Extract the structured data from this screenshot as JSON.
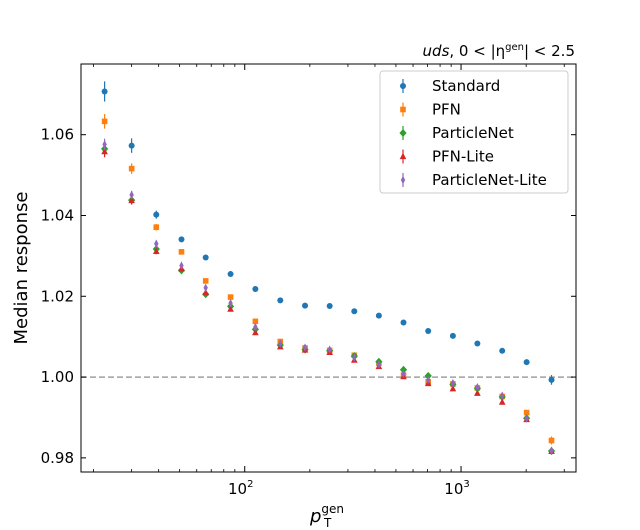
{
  "chart_data": {
    "type": "scatter",
    "title": "",
    "corner_label": {
      "prefix": "uds",
      "mid": ", 0 < |η",
      "sup": "gen",
      "suffix": "| < 2.5"
    },
    "xlabel": {
      "base": "p",
      "sub": "T",
      "sup": "gen"
    },
    "ylabel": "Median response",
    "xscale": "log",
    "xlim": [
      17.5,
      3400
    ],
    "ylim": [
      0.9765,
      1.0775
    ],
    "x_ticks": [
      {
        "value": 100,
        "base": "10",
        "exp": "2"
      },
      {
        "value": 1000,
        "base": "10",
        "exp": "3"
      }
    ],
    "y_ticks": [
      {
        "value": 0.98,
        "label": "0.98"
      },
      {
        "value": 1.0,
        "label": "1.00"
      },
      {
        "value": 1.02,
        "label": "1.02"
      },
      {
        "value": 1.04,
        "label": "1.04"
      },
      {
        "value": 1.06,
        "label": "1.06"
      }
    ],
    "reference_line": {
      "y": 1.0,
      "style": "dashed",
      "color": "#a0a0a0"
    },
    "grid": false,
    "legend": {
      "placement": "top-right"
    },
    "x": [
      22.5,
      30,
      39,
      51,
      66,
      86,
      112,
      146,
      190,
      247,
      321,
      417,
      542,
      705,
      917,
      1190,
      1550,
      2010,
      2620
    ],
    "series": [
      {
        "name": "Standard",
        "color": "#1f77b4",
        "marker": "circle",
        "values": [
          1.0707,
          1.0573,
          1.0402,
          1.0341,
          1.0296,
          1.0255,
          1.0218,
          1.019,
          1.0177,
          1.0176,
          1.0163,
          1.0152,
          1.0135,
          1.0114,
          1.0102,
          1.0083,
          1.0065,
          1.0037,
          0.9993
        ],
        "errors": [
          0.0025,
          0.0018,
          0.001,
          0.0007,
          0.0006,
          0.0004,
          0.0004,
          0.0003,
          0.0003,
          0.0003,
          0.0003,
          0.0003,
          0.0003,
          0.0003,
          0.0003,
          0.0003,
          0.0004,
          0.0005,
          0.0012
        ]
      },
      {
        "name": "PFN",
        "color": "#ff7f0e",
        "marker": "square",
        "values": [
          1.0633,
          1.0516,
          1.0371,
          1.031,
          1.0238,
          1.0198,
          1.0138,
          1.0088,
          1.0072,
          1.0066,
          1.0054,
          1.0034,
          1.0005,
          0.9988,
          0.9983,
          0.9973,
          0.9952,
          0.9912,
          0.9843
        ],
        "errors": [
          0.0018,
          0.0013,
          0.0008,
          0.0005,
          0.0004,
          0.0004,
          0.0003,
          0.0003,
          0.0003,
          0.0003,
          0.0003,
          0.0003,
          0.0003,
          0.0003,
          0.0003,
          0.0003,
          0.0004,
          0.0005,
          0.001
        ]
      },
      {
        "name": "ParticleNet",
        "color": "#2ca02c",
        "marker": "diamond",
        "values": [
          1.0565,
          1.0438,
          1.0317,
          1.0264,
          1.0205,
          1.0175,
          1.0118,
          1.0079,
          1.0068,
          1.0065,
          1.0052,
          1.0038,
          1.0018,
          1.0003,
          0.9982,
          0.9972,
          0.9951,
          0.9898,
          0.9817
        ],
        "errors": [
          0.0014,
          0.001,
          0.0007,
          0.0005,
          0.0004,
          0.0003,
          0.0003,
          0.0003,
          0.0003,
          0.0003,
          0.0003,
          0.0003,
          0.0003,
          0.0003,
          0.0003,
          0.0003,
          0.0003,
          0.0005,
          0.0008
        ]
      },
      {
        "name": "PFN-Lite",
        "color": "#d62728",
        "marker": "triangle",
        "values": [
          1.0558,
          1.0437,
          1.0311,
          1.0268,
          1.0209,
          1.0168,
          1.011,
          1.0075,
          1.0067,
          1.0061,
          1.0042,
          1.0026,
          1.0001,
          0.9984,
          0.9971,
          0.996,
          0.9938,
          0.9895,
          0.9816
        ],
        "errors": [
          0.0014,
          0.001,
          0.0007,
          0.0005,
          0.0004,
          0.0003,
          0.0003,
          0.0003,
          0.0003,
          0.0003,
          0.0003,
          0.0003,
          0.0003,
          0.0003,
          0.0003,
          0.0003,
          0.0003,
          0.0005,
          0.0008
        ]
      },
      {
        "name": "ParticleNet-Lite",
        "color": "#9467bd",
        "marker": "thin-diamond",
        "values": [
          1.0576,
          1.0451,
          1.033,
          1.0276,
          1.0221,
          1.0183,
          1.0124,
          1.0083,
          1.0073,
          1.0068,
          1.0048,
          1.0031,
          1.0008,
          0.9993,
          0.9985,
          0.9975,
          0.9954,
          0.9897,
          0.9818
        ],
        "errors": [
          0.0014,
          0.001,
          0.0007,
          0.0005,
          0.0004,
          0.0003,
          0.0003,
          0.0003,
          0.0003,
          0.0003,
          0.0003,
          0.0003,
          0.0003,
          0.0003,
          0.0003,
          0.0003,
          0.0003,
          0.0005,
          0.0008
        ]
      }
    ]
  }
}
